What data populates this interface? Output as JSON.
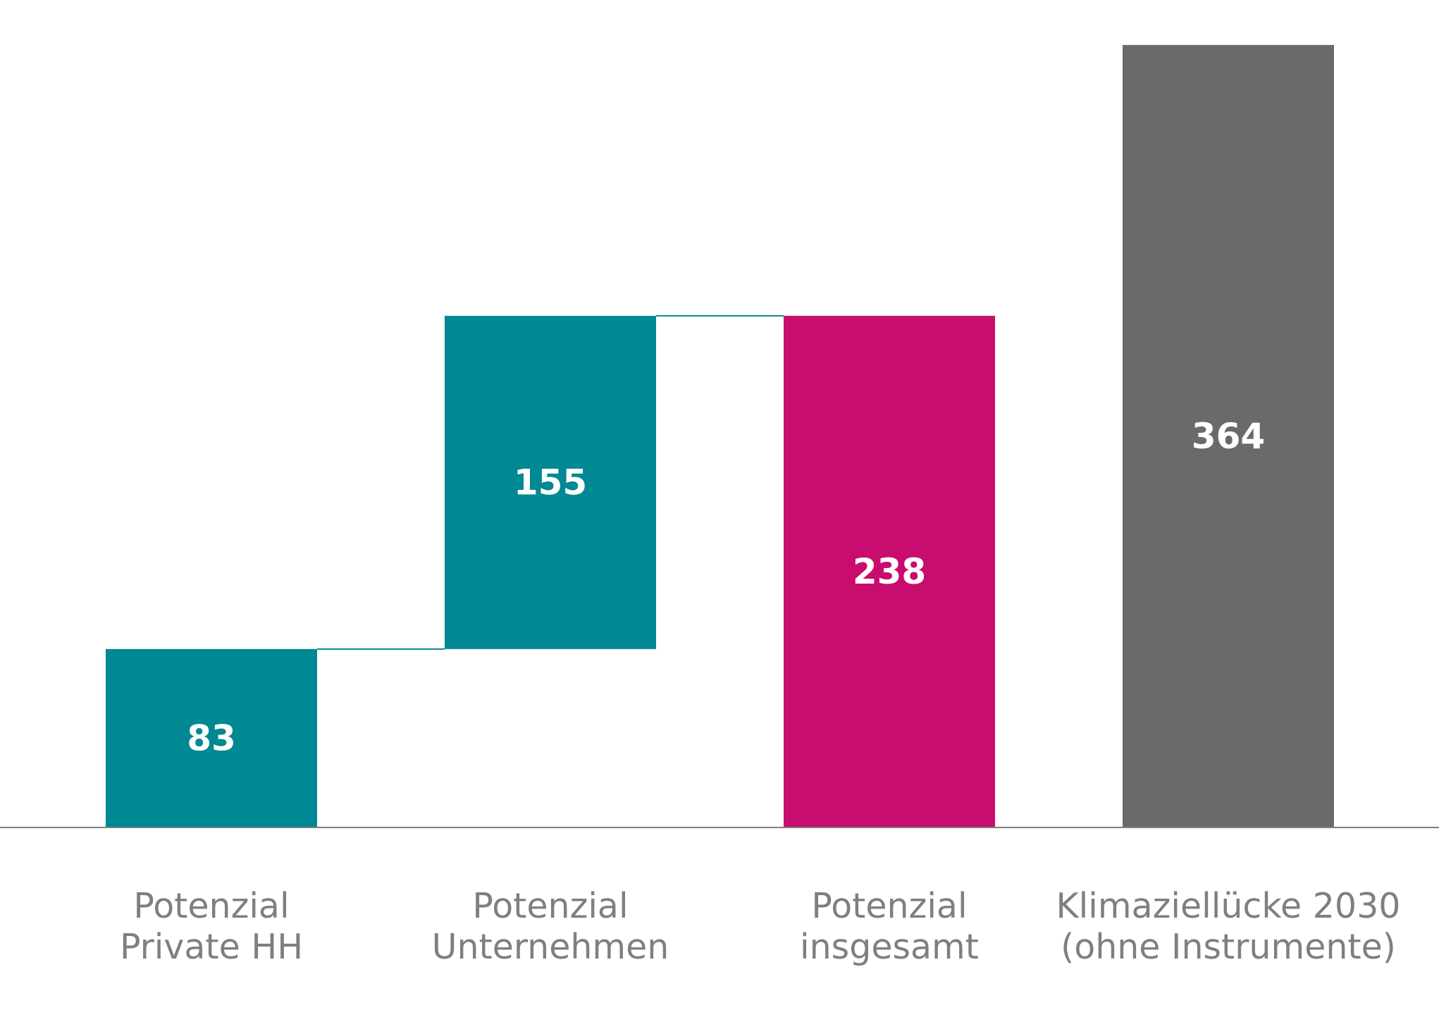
{
  "chart_data": {
    "type": "bar",
    "subtype": "waterfall",
    "title": "",
    "xlabel": "",
    "ylabel": "",
    "ylim": [
      0,
      380
    ],
    "grid": false,
    "legend": "none",
    "categories": [
      [
        "Potenzial",
        "Private HH"
      ],
      [
        "Potenzial",
        "Unternehmen"
      ],
      [
        "Potenzial",
        "insgesamt"
      ],
      [
        "Klimaziellücke 2030",
        "(ohne Instrumente)"
      ]
    ],
    "bars": [
      {
        "base": 0,
        "value": 83,
        "label": "83",
        "color": "#008893"
      },
      {
        "base": 83,
        "value": 155,
        "label": "155",
        "color": "#008893"
      },
      {
        "base": 0,
        "value": 238,
        "label": "238",
        "color": "#c80d6e"
      },
      {
        "base": 0,
        "value": 364,
        "label": "364",
        "color": "#6a6a6a"
      }
    ],
    "connector_color": "#008893",
    "axis_color": "#7f7f7f",
    "label_text_color": "#ffffff",
    "category_text_color": "#7f7f7f"
  }
}
